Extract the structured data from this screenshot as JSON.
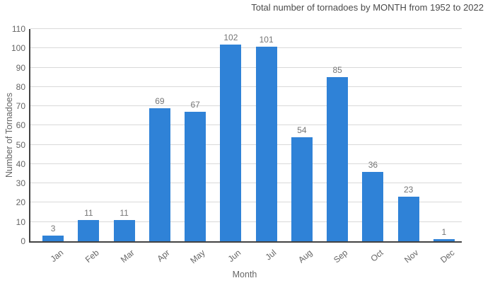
{
  "chart_data": {
    "type": "bar",
    "title": "Total number of tornadoes by MONTH from 1952 to 2022",
    "xlabel": "Month",
    "ylabel": "Number of Tornadoes",
    "categories": [
      "Jan",
      "Feb",
      "Mar",
      "Apr",
      "May",
      "Jun",
      "Jul",
      "Aug",
      "Sep",
      "Oct",
      "Nov",
      "Dec"
    ],
    "values": [
      3,
      11,
      11,
      69,
      67,
      102,
      101,
      54,
      85,
      36,
      23,
      1
    ],
    "ylim": [
      0,
      110
    ],
    "ytick_step": 10,
    "grid": true,
    "legend": "none",
    "value_labels": true
  },
  "colors": {
    "bar": "#2f82d7",
    "grid": "#d9d9d9",
    "axis": "#424242",
    "tick_text": "#666666",
    "value_text": "#757575",
    "title_text": "#4a4a4a",
    "background": "#ffffff"
  }
}
